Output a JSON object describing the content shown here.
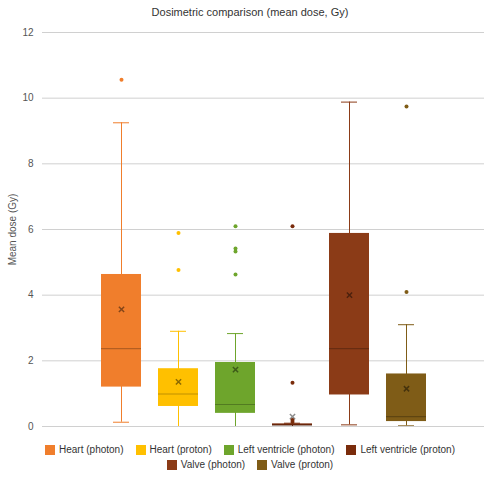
{
  "chart_data": {
    "type": "box",
    "title": "Dosimetric comparison (mean dose, Gy)",
    "y_label": "Mean dose (Gy)",
    "categories": [
      "Heart (photon)",
      "Heart (proton)",
      "Left ventricle (photon)",
      "Left ventricle (proton)",
      "Valve (photon)",
      "Valve (proton)"
    ],
    "colors": [
      "#f07e2c",
      "#ffc000",
      "#6ea52c",
      "#7a2c0c",
      "#8b3b17",
      "#7f5c17"
    ],
    "boxes": [
      {
        "min": 0.13,
        "q1": 1.2,
        "median": 2.37,
        "q3": 4.63,
        "max": 9.25,
        "mean": 3.57,
        "outliers": [
          10.56
        ]
      },
      {
        "min": 0.0,
        "q1": 0.61,
        "median": 0.99,
        "q3": 1.76,
        "max": 2.9,
        "mean": 1.36,
        "outliers": [
          4.77,
          5.89
        ]
      },
      {
        "min": 0.0,
        "q1": 0.4,
        "median": 0.67,
        "q3": 1.95,
        "max": 2.83,
        "mean": 1.73,
        "outliers": [
          4.63,
          5.33,
          5.42,
          6.1
        ]
      },
      {
        "min": 0.0,
        "q1": 0.02,
        "median": 0.04,
        "q3": 0.08,
        "max": 0.1,
        "mean": 0.3,
        "outliers": [
          0.14,
          0.2,
          1.33,
          6.1
        ]
      },
      {
        "min": 0.05,
        "q1": 0.96,
        "median": 2.37,
        "q3": 5.88,
        "max": 9.88,
        "mean": 4.0,
        "outliers": []
      },
      {
        "min": 0.02,
        "q1": 0.15,
        "median": 0.3,
        "q3": 1.6,
        "max": 3.1,
        "mean": 1.15,
        "outliers": [
          4.1,
          9.75
        ]
      }
    ],
    "ylim": [
      0,
      12
    ],
    "yticks": [
      0,
      2,
      4,
      6,
      8,
      10,
      12
    ],
    "grid": true,
    "legend": "bottom",
    "tick_labels": "y"
  }
}
